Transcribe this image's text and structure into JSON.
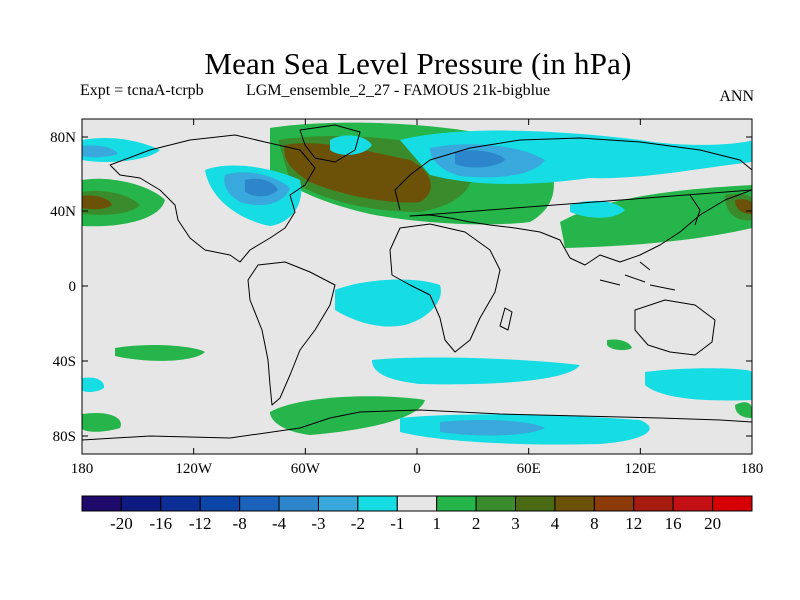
{
  "title": "Mean Sea Level Pressure (in hPa)",
  "subtitle": {
    "expt": "Expt = tcnaA-tcrpb",
    "run": "LGM_ensemble_2_27 - FAMOUS 21k-bigblue",
    "season": "ANN"
  },
  "axes": {
    "x_ticks": [
      "180",
      "120W",
      "60W",
      "0",
      "60E",
      "120E",
      "180"
    ],
    "y_ticks": [
      "80N",
      "40N",
      "0",
      "40S",
      "80S"
    ]
  },
  "colorbar": {
    "labels": [
      "-20",
      "-16",
      "-12",
      "-8",
      "-4",
      "-3",
      "-2",
      "-1",
      "1",
      "2",
      "3",
      "4",
      "8",
      "12",
      "16",
      "20"
    ],
    "colors": [
      "#1d0a6b",
      "#0d1a80",
      "#0b2f96",
      "#0c45a8",
      "#1a62bb",
      "#2d86cc",
      "#39a8dc",
      "#16dce3",
      "#e6e6e6",
      "#26b54a",
      "#3a8b2c",
      "#4a6a14",
      "#6b5208",
      "#8b3a08",
      "#a61c10",
      "#c21014",
      "#d60000"
    ]
  },
  "palette": {
    "background_field": "#e6e6e6",
    "coast": "#000000"
  }
}
